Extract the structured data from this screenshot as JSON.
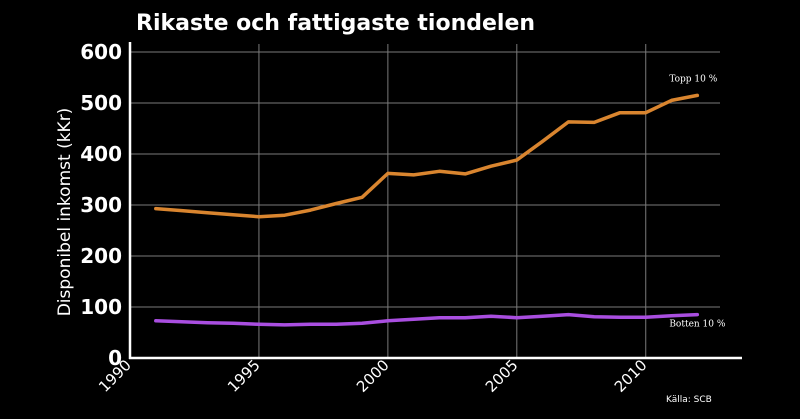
{
  "chart_data": {
    "type": "line",
    "title": "Rikaste och fattigaste tiondelen",
    "ylabel": "Disponibel inkomst (kKr)",
    "xlabel": "",
    "source": "Källa:  SCB",
    "xlim": [
      1990,
      2013.5
    ],
    "ylim": [
      0,
      600
    ],
    "grid": true,
    "x_ticks": [
      "1990",
      "1995",
      "2000",
      "2005",
      "2010"
    ],
    "y_ticks": [
      "0",
      "100",
      "200",
      "300",
      "400",
      "500",
      "600"
    ],
    "x": [
      1991,
      1992,
      1993,
      1994,
      1995,
      1996,
      1997,
      1998,
      1999,
      2000,
      2001,
      2002,
      2003,
      2004,
      2005,
      2006,
      2007,
      2008,
      2009,
      2010,
      2011,
      2012
    ],
    "series": [
      {
        "name": "Topp 10 %",
        "color": "#d9852f",
        "values": [
          293,
          289,
          285,
          281,
          277,
          280,
          290,
          303,
          315,
          362,
          359,
          366,
          361,
          376,
          388,
          425,
          463,
          462,
          481,
          481,
          505,
          515
        ]
      },
      {
        "name": "Botten 10 %",
        "color": "#a94ee0",
        "values": [
          73,
          71,
          69,
          68,
          66,
          65,
          66,
          66,
          68,
          73,
          76,
          79,
          79,
          82,
          79,
          82,
          85,
          81,
          80,
          80,
          83,
          85
        ]
      }
    ]
  }
}
